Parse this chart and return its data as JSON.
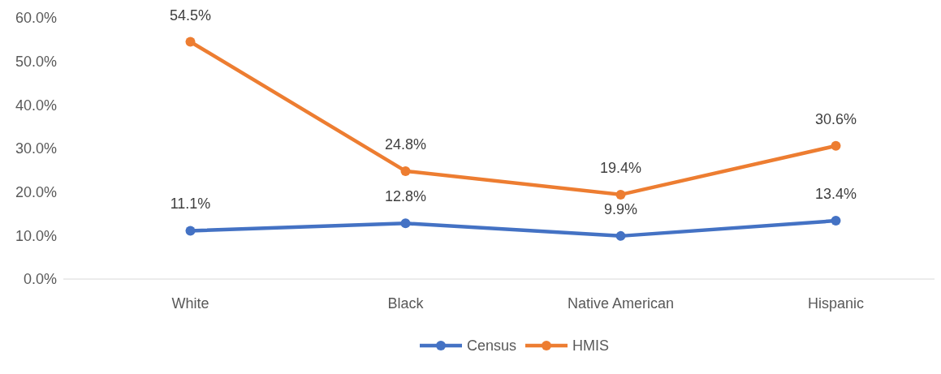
{
  "chart_data": {
    "type": "line",
    "categories": [
      "White",
      "Black",
      "Native American",
      "Hispanic"
    ],
    "series": [
      {
        "name": "Census",
        "color": "#4472c4",
        "values": [
          11.1,
          12.8,
          9.9,
          13.4
        ],
        "value_labels": [
          "11.1%",
          "12.8%",
          "9.9%",
          "13.4%"
        ]
      },
      {
        "name": "HMIS",
        "color": "#ed7d31",
        "values": [
          54.5,
          24.8,
          19.4,
          30.6
        ],
        "value_labels": [
          "54.5%",
          "24.8%",
          "19.4%",
          "30.6%"
        ]
      }
    ],
    "ylim": [
      0,
      60
    ],
    "yticks": [
      {
        "value": 0,
        "label": "0.0%"
      },
      {
        "value": 10,
        "label": "10.0%"
      },
      {
        "value": 20,
        "label": "20.0%"
      },
      {
        "value": 30,
        "label": "30.0%"
      },
      {
        "value": 40,
        "label": "40.0%"
      },
      {
        "value": 50,
        "label": "50.0%"
      },
      {
        "value": 60,
        "label": "60.0%"
      }
    ],
    "grid": false,
    "legend": "bottom",
    "marker": "circle",
    "line_style": "solid"
  }
}
